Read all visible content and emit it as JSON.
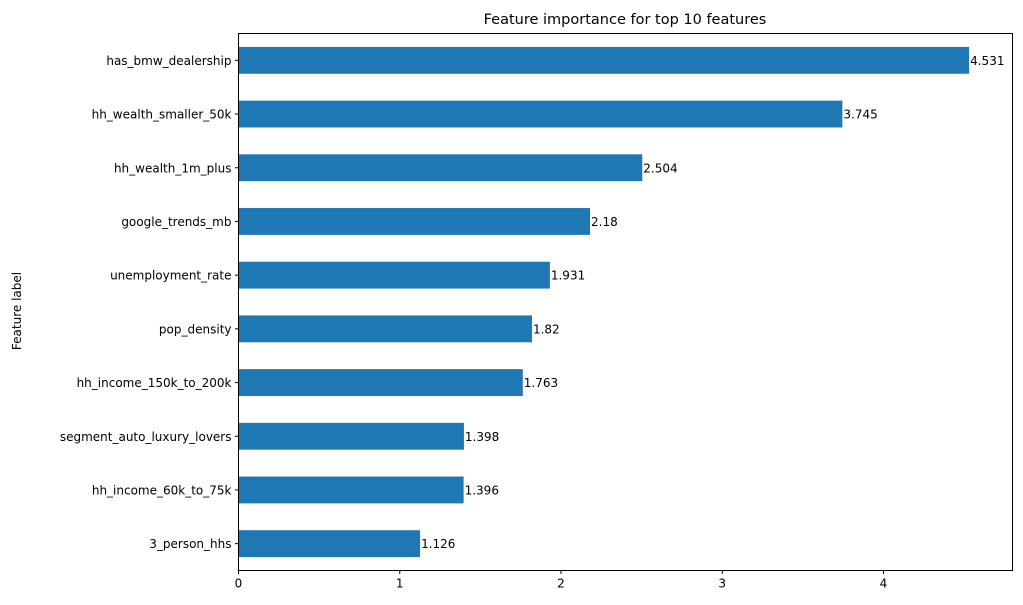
{
  "chart_data": {
    "type": "bar",
    "orientation": "horizontal",
    "title": "Feature importance for top 10 features",
    "xlabel": "",
    "ylabel": "Feature label",
    "xlim": [
      0,
      4.8
    ],
    "xticks": [
      0,
      1,
      2,
      3,
      4
    ],
    "grid": false,
    "bar_color": "#1f77b4",
    "categories": [
      "has_bmw_dealership",
      "hh_wealth_smaller_50k",
      "hh_wealth_1m_plus",
      "google_trends_mb",
      "unemployment_rate",
      "pop_density",
      "hh_income_150k_to_200k",
      "segment_auto_luxury_lovers",
      "hh_income_60k_to_75k",
      "3_person_hhs"
    ],
    "values": [
      4.531,
      3.745,
      2.504,
      2.18,
      1.931,
      1.82,
      1.763,
      1.398,
      1.396,
      1.126
    ],
    "value_labels": [
      "4.531",
      "3.745",
      "2.504",
      "2.18",
      "1.931",
      "1.82",
      "1.763",
      "1.398",
      "1.396",
      "1.126"
    ]
  }
}
